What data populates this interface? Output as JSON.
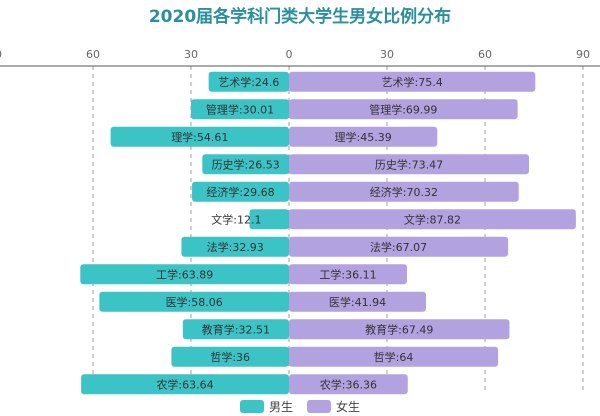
{
  "chart_data": {
    "type": "bar",
    "orientation": "horizontal-diverging",
    "title": "2020届各学科门类大学生男女比例分布",
    "categories": [
      "艺术学",
      "管理学",
      "理学",
      "历史学",
      "经济学",
      "文学",
      "法学",
      "工学",
      "医学",
      "教育学",
      "哲学",
      "农学"
    ],
    "series": [
      {
        "name": "男生",
        "color": "#3cc3c6",
        "direction": "left",
        "values": [
          24.6,
          30.01,
          54.61,
          26.53,
          29.68,
          12.1,
          32.93,
          63.89,
          58.06,
          32.51,
          36,
          63.64
        ]
      },
      {
        "name": "女生",
        "color": "#b3a2e0",
        "direction": "right",
        "values": [
          75.4,
          69.99,
          45.39,
          73.47,
          70.32,
          87.82,
          67.07,
          36.11,
          41.94,
          67.49,
          64,
          36.36
        ]
      }
    ],
    "xlim": [
      -90,
      90
    ],
    "xticks": [
      "90",
      "60",
      "30",
      "0",
      "30",
      "60",
      "90"
    ],
    "grid": true,
    "legend": "bottom"
  }
}
